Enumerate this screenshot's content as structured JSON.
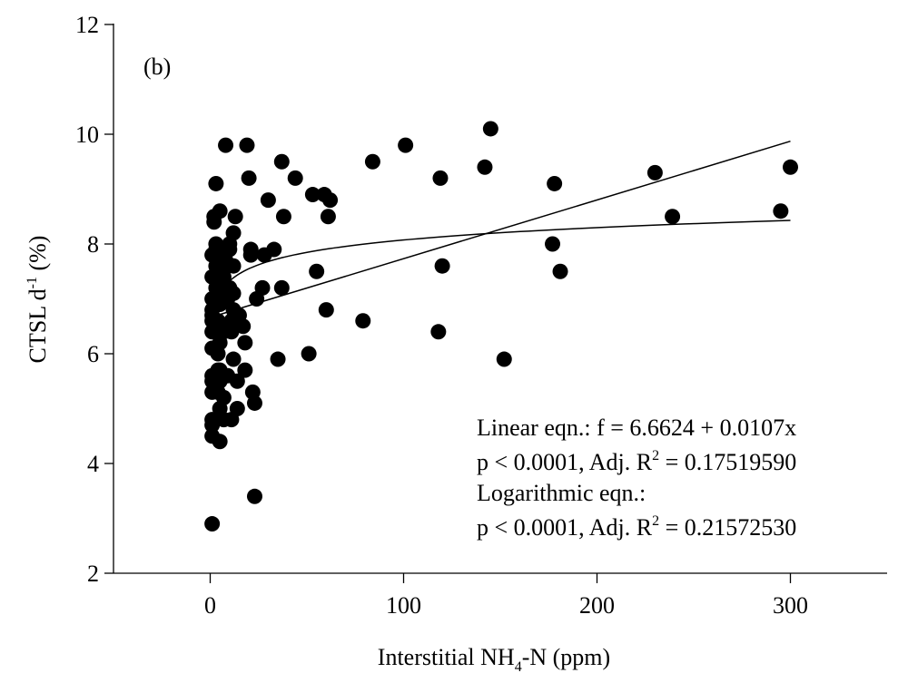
{
  "chart_data": {
    "type": "scatter",
    "panel_label": "(b)",
    "xlabel": {
      "prefix": "Interstitial NH",
      "subscript": "4",
      "suffix": "-N (ppm)"
    },
    "ylabel": {
      "prefix": "CTSL d",
      "superscript": "-1",
      "suffix": " (%)"
    },
    "xlim": [
      -50,
      350
    ],
    "ylim": [
      2,
      12
    ],
    "x_ticks": [
      0,
      100,
      200,
      300
    ],
    "y_ticks": [
      2,
      4,
      6,
      8,
      10,
      12
    ],
    "grid": false,
    "points": [
      [
        1,
        2.9
      ],
      [
        1,
        4.5
      ],
      [
        1,
        4.7
      ],
      [
        1,
        4.8
      ],
      [
        1,
        5.3
      ],
      [
        1,
        5.5
      ],
      [
        1,
        5.6
      ],
      [
        1,
        6.1
      ],
      [
        1,
        6.4
      ],
      [
        1,
        6.6
      ],
      [
        1,
        6.7
      ],
      [
        1,
        6.8
      ],
      [
        1,
        7.0
      ],
      [
        1,
        7.4
      ],
      [
        1,
        7.8
      ],
      [
        2,
        8.4
      ],
      [
        2,
        8.5
      ],
      [
        3,
        7.2
      ],
      [
        3,
        7.6
      ],
      [
        3,
        7.9
      ],
      [
        3,
        8.0
      ],
      [
        3,
        9.1
      ],
      [
        4,
        5.3
      ],
      [
        4,
        5.5
      ],
      [
        4,
        5.7
      ],
      [
        4,
        6.0
      ],
      [
        4,
        6.4
      ],
      [
        4,
        6.6
      ],
      [
        4,
        7.0
      ],
      [
        4,
        7.3
      ],
      [
        4,
        7.7
      ],
      [
        4,
        7.8
      ],
      [
        5,
        4.4
      ],
      [
        5,
        5.0
      ],
      [
        5,
        5.5
      ],
      [
        5,
        5.7
      ],
      [
        5,
        6.2
      ],
      [
        5,
        6.5
      ],
      [
        5,
        6.9
      ],
      [
        5,
        7.1
      ],
      [
        5,
        7.5
      ],
      [
        5,
        8.6
      ],
      [
        7,
        4.8
      ],
      [
        7,
        5.2
      ],
      [
        7,
        5.6
      ],
      [
        7,
        6.4
      ],
      [
        7,
        7.2
      ],
      [
        7,
        7.4
      ],
      [
        8,
        7.7
      ],
      [
        8,
        9.8
      ],
      [
        9,
        5.6
      ],
      [
        9,
        6.5
      ],
      [
        9,
        7.0
      ],
      [
        9,
        7.6
      ],
      [
        10,
        7.2
      ],
      [
        10,
        7.9
      ],
      [
        10,
        8.0
      ],
      [
        11,
        4.8
      ],
      [
        11,
        6.4
      ],
      [
        11,
        6.6
      ],
      [
        12,
        5.9
      ],
      [
        12,
        6.8
      ],
      [
        12,
        7.1
      ],
      [
        12,
        7.6
      ],
      [
        12,
        8.2
      ],
      [
        13,
        8.5
      ],
      [
        14,
        5.0
      ],
      [
        14,
        5.5
      ],
      [
        15,
        6.7
      ],
      [
        17,
        6.5
      ],
      [
        18,
        5.7
      ],
      [
        18,
        6.2
      ],
      [
        19,
        9.8
      ],
      [
        20,
        9.2
      ],
      [
        21,
        7.9
      ],
      [
        21,
        7.8
      ],
      [
        22,
        5.3
      ],
      [
        23,
        3.4
      ],
      [
        23,
        5.1
      ],
      [
        24,
        7.0
      ],
      [
        27,
        7.2
      ],
      [
        28,
        7.8
      ],
      [
        30,
        8.8
      ],
      [
        33,
        7.9
      ],
      [
        35,
        5.9
      ],
      [
        37,
        9.5
      ],
      [
        37,
        7.2
      ],
      [
        38,
        8.5
      ],
      [
        44,
        9.2
      ],
      [
        51,
        6.0
      ],
      [
        53,
        8.9
      ],
      [
        55,
        7.5
      ],
      [
        59,
        8.9
      ],
      [
        60,
        6.8
      ],
      [
        61,
        8.5
      ],
      [
        62,
        8.8
      ],
      [
        79,
        6.6
      ],
      [
        84,
        9.5
      ],
      [
        101,
        9.8
      ],
      [
        118,
        6.4
      ],
      [
        119,
        9.2
      ],
      [
        120,
        7.6
      ],
      [
        142,
        9.4
      ],
      [
        145,
        10.1
      ],
      [
        152,
        5.9
      ],
      [
        177,
        8.0
      ],
      [
        178,
        9.1
      ],
      [
        181,
        7.5
      ],
      [
        230,
        9.3
      ],
      [
        239,
        8.5
      ],
      [
        295,
        8.6
      ],
      [
        300,
        9.4
      ]
    ],
    "linear_fit": {
      "intercept": 6.6624,
      "slope": 0.0107,
      "x_range": [
        2,
        300
      ]
    },
    "log_fit": {
      "x_range": [
        2,
        300
      ],
      "y_at_x_min": 6.8,
      "y_at_x_max": 8.43
    },
    "annotations": [
      {
        "text": "Linear eqn.: f = 6.6624 + 0.0107x"
      },
      {
        "text": "p < 0.0001, Adj. R",
        "superscript": "2",
        "suffix": " = 0.17519590"
      },
      {
        "text": "Logarithmic eqn.:"
      },
      {
        "text": "p < 0.0001, Adj. R",
        "superscript": "2",
        "suffix": " = 0.21572530"
      }
    ]
  }
}
